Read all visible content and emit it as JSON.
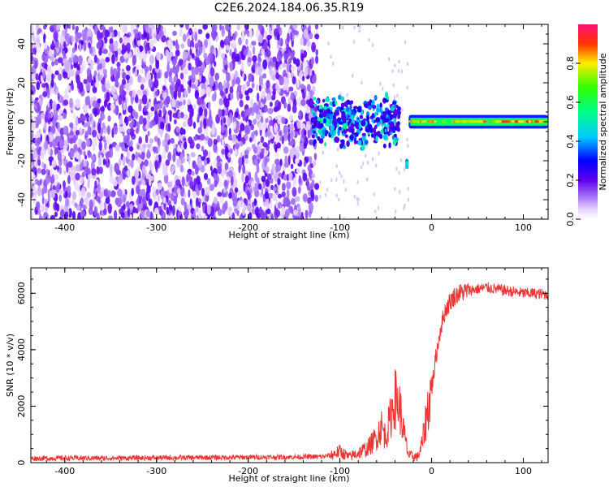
{
  "title": "C2E6.2024.184.06.35.R19",
  "chart_data": [
    {
      "type": "heatmap",
      "xlabel": "Height of straight line (km)",
      "ylabel": "Frequency (Hz)",
      "xlim": [
        -437,
        127
      ],
      "ylim": [
        -50,
        50
      ],
      "xticks": [
        -400,
        -300,
        -200,
        -100,
        0,
        100
      ],
      "yticks": [
        -40,
        -20,
        0,
        20,
        40
      ],
      "colorbar": {
        "label": "Normalized spectral amplitude",
        "range": [
          0,
          1
        ],
        "ticks": [
          0.0,
          0.2,
          0.4,
          0.6,
          0.8
        ]
      },
      "regions": [
        {
          "x": [
            -437,
            -125
          ],
          "y": [
            -50,
            50
          ],
          "amplitude": 0.07,
          "description": "broadband noise"
        },
        {
          "x": [
            -130,
            -35
          ],
          "y": [
            -14,
            14
          ],
          "amplitude": 0.15
        },
        {
          "x": [
            -28,
            -26
          ],
          "y": [
            -24,
            -20
          ],
          "amplitude": 0.35
        },
        {
          "x": [
            -25,
            127
          ],
          "y": [
            -2,
            2
          ],
          "amplitude": 0.85
        }
      ]
    },
    {
      "type": "line",
      "xlabel": "Height of straight line (km)",
      "ylabel": "SNR (10 * v/v)",
      "xlim": [
        -437,
        127
      ],
      "ylim": [
        0,
        6900
      ],
      "xticks": [
        -400,
        -300,
        -200,
        -100,
        0,
        100
      ],
      "yticks": [
        0,
        2000,
        4000,
        6000
      ],
      "series": [
        {
          "color": "#ee3333",
          "x": [
            -437,
            -400,
            -350,
            -300,
            -250,
            -200,
            -150,
            -120,
            -110,
            -100,
            -95,
            -90,
            -80,
            -70,
            -60,
            -55,
            -50,
            -45,
            -40,
            -35,
            -30,
            -25,
            -20,
            -15,
            -10,
            -5,
            0,
            5,
            10,
            15,
            20,
            25,
            30,
            40,
            50,
            60,
            70,
            80,
            90,
            100,
            110,
            127
          ],
          "y": [
            150,
            160,
            160,
            170,
            180,
            190,
            200,
            210,
            260,
            400,
            300,
            200,
            350,
            500,
            900,
            1300,
            900,
            1600,
            2300,
            2000,
            1000,
            250,
            220,
            200,
            700,
            1800,
            2600,
            3800,
            4800,
            5400,
            5700,
            5900,
            6000,
            6100,
            6150,
            6200,
            6150,
            6100,
            6050,
            6000,
            6000,
            5950
          ]
        }
      ]
    }
  ]
}
